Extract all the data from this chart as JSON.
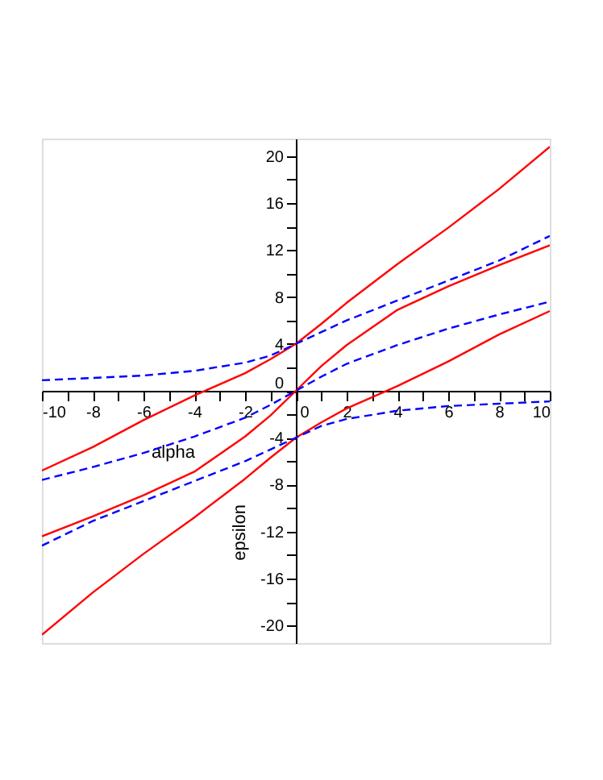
{
  "chart_data": {
    "type": "line",
    "xlabel": "alpha",
    "ylabel": "epsilon",
    "xlim": [
      -10,
      10
    ],
    "ylim": [
      -21.5,
      21.5
    ],
    "xticks": [
      -10,
      {
        "value": -9,
        "label": null
      },
      -8,
      {
        "value": -7,
        "label": null
      },
      -6,
      {
        "value": -5,
        "label": null
      },
      -4,
      {
        "value": -3,
        "label": null
      },
      -2,
      {
        "value": -1,
        "label": null
      },
      0,
      {
        "value": 1,
        "label": null
      },
      2,
      {
        "value": 3,
        "label": null
      },
      4,
      {
        "value": 5,
        "label": null
      },
      6,
      {
        "value": 7,
        "label": null
      },
      8,
      {
        "value": 9,
        "label": null
      },
      10
    ],
    "yticks": [
      -20,
      {
        "value": -18,
        "label": null
      },
      -16,
      {
        "value": -14,
        "label": null
      },
      -12,
      {
        "value": -10,
        "label": null
      },
      -8,
      {
        "value": -6,
        "label": null
      },
      -4,
      {
        "value": -2,
        "label": null
      },
      0,
      {
        "value": 2,
        "label": null
      },
      4,
      {
        "value": 6,
        "label": null
      },
      8,
      {
        "value": 10,
        "label": null
      },
      12,
      {
        "value": 14,
        "label": null
      },
      16,
      {
        "value": 18,
        "label": null
      },
      20
    ],
    "x": [
      -10,
      -8,
      -6,
      -4,
      -2,
      -1,
      0,
      1,
      2,
      4,
      6,
      8,
      10
    ],
    "grid": false,
    "legend": false,
    "marker": "none",
    "series": [
      {
        "color": "#ff0000",
        "line_style": "solid",
        "values": [
          -6.8,
          -4.8,
          -2.5,
          -0.4,
          1.5,
          2.7,
          4,
          5.7,
          7.5,
          10.8,
          13.9,
          17.2,
          20.8
        ]
      },
      {
        "color": "#ff0000",
        "line_style": "solid",
        "values": [
          -12.4,
          -10.7,
          -8.9,
          -6.9,
          -3.9,
          -2.1,
          0,
          2.1,
          3.9,
          6.9,
          8.9,
          10.7,
          12.4
        ]
      },
      {
        "color": "#ff0000",
        "line_style": "solid",
        "values": [
          -20.8,
          -17.2,
          -13.9,
          -10.8,
          -7.5,
          -5.7,
          -4,
          -2.7,
          -1.5,
          0.4,
          2.5,
          4.8,
          6.8
        ]
      },
      {
        "color": "#0000ff",
        "line_style": "dashed",
        "values": [
          0.9,
          1.1,
          1.3,
          1.7,
          2.4,
          3.0,
          4,
          5.0,
          6.0,
          7.7,
          9.4,
          11.1,
          13.2
        ]
      },
      {
        "color": "#0000ff",
        "line_style": "dashed",
        "values": [
          -7.6,
          -6.5,
          -5.3,
          -3.9,
          -2.3,
          -1.2,
          0,
          1.2,
          2.3,
          3.9,
          5.3,
          6.5,
          7.6
        ]
      },
      {
        "color": "#0000ff",
        "line_style": "dashed",
        "values": [
          -13.2,
          -11.1,
          -9.4,
          -7.7,
          -6.0,
          -5.0,
          -4,
          -3.0,
          -2.4,
          -1.7,
          -1.3,
          -1.1,
          -0.9
        ]
      }
    ]
  }
}
